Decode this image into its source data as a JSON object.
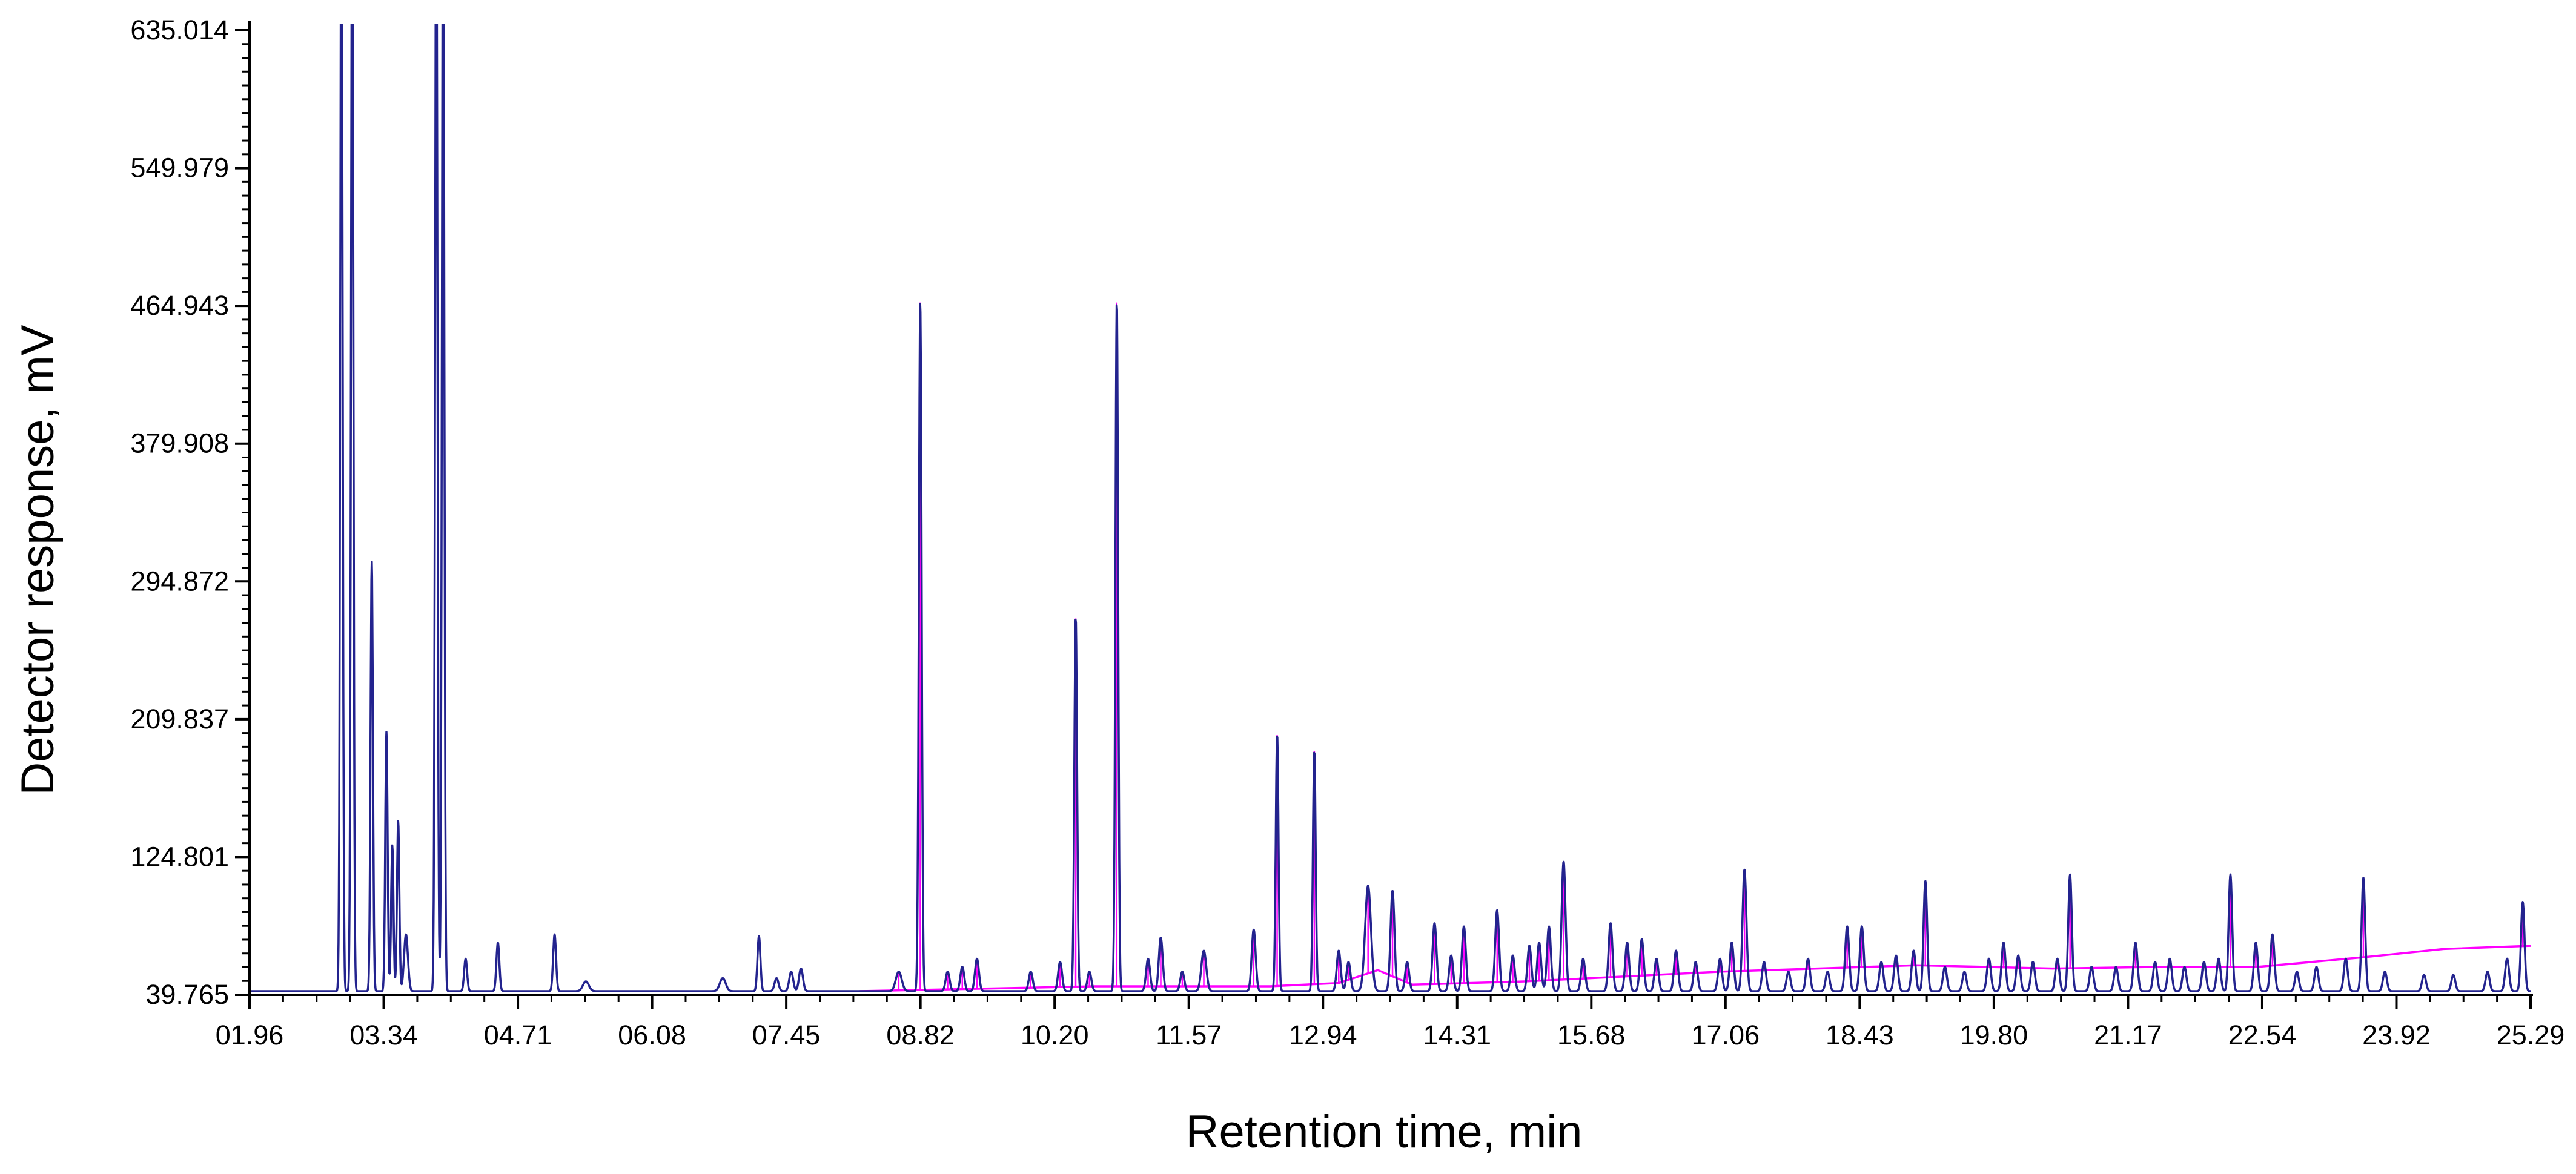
{
  "chart_data": {
    "type": "line",
    "xlabel": "Retention time, min",
    "ylabel": "Detector response, mV",
    "xlim": [
      1.96,
      25.29
    ],
    "ylim": [
      39.765,
      635.014
    ],
    "x_tick_labels": [
      "01.96",
      "03.34",
      "04.71",
      "06.08",
      "07.45",
      "08.82",
      "10.20",
      "11.57",
      "12.94",
      "14.31",
      "15.68",
      "17.06",
      "18.43",
      "19.80",
      "21.17",
      "22.54",
      "23.92",
      "25.29"
    ],
    "y_tick_labels": [
      "635.014",
      "549.979",
      "464.943",
      "379.908",
      "294.872",
      "209.837",
      "124.801",
      "39.765"
    ],
    "grid": false,
    "series": [
      {
        "role": "chromatogram",
        "color": "#23238e",
        "baseline": 42,
        "peaks": [
          [
            2.9,
            700,
            0.012
          ],
          [
            3.01,
            700,
            0.012
          ],
          [
            3.21,
            265,
            0.012
          ],
          [
            3.36,
            160,
            0.012
          ],
          [
            3.42,
            90,
            0.012
          ],
          [
            3.48,
            105,
            0.012
          ],
          [
            3.56,
            35,
            0.02
          ],
          [
            3.87,
            700,
            0.012
          ],
          [
            3.94,
            700,
            0.012
          ],
          [
            4.17,
            20,
            0.015
          ],
          [
            4.5,
            30,
            0.015
          ],
          [
            5.08,
            35,
            0.015
          ],
          [
            5.4,
            6,
            0.03
          ],
          [
            6.8,
            8,
            0.03
          ],
          [
            7.17,
            34,
            0.015
          ],
          [
            7.35,
            8,
            0.02
          ],
          [
            7.5,
            12,
            0.02
          ],
          [
            7.6,
            14,
            0.02
          ],
          [
            8.6,
            12,
            0.03
          ],
          [
            8.82,
            425,
            0.014
          ],
          [
            9.1,
            12,
            0.02
          ],
          [
            9.25,
            15,
            0.02
          ],
          [
            9.4,
            20,
            0.02
          ],
          [
            9.95,
            12,
            0.02
          ],
          [
            10.25,
            18,
            0.02
          ],
          [
            10.41,
            230,
            0.014
          ],
          [
            10.55,
            12,
            0.02
          ],
          [
            10.83,
            425,
            0.014
          ],
          [
            11.15,
            20,
            0.02
          ],
          [
            11.28,
            33,
            0.02
          ],
          [
            11.5,
            12,
            0.02
          ],
          [
            11.72,
            25,
            0.025
          ],
          [
            12.23,
            38,
            0.02
          ],
          [
            12.47,
            158,
            0.014
          ],
          [
            12.85,
            148,
            0.014
          ],
          [
            13.1,
            25,
            0.02
          ],
          [
            13.2,
            18,
            0.02
          ],
          [
            13.4,
            65,
            0.03
          ],
          [
            13.65,
            62,
            0.02
          ],
          [
            13.8,
            18,
            0.02
          ],
          [
            14.08,
            42,
            0.02
          ],
          [
            14.25,
            22,
            0.02
          ],
          [
            14.38,
            40,
            0.02
          ],
          [
            14.72,
            50,
            0.02
          ],
          [
            14.88,
            22,
            0.02
          ],
          [
            15.05,
            28,
            0.02
          ],
          [
            15.15,
            30,
            0.02
          ],
          [
            15.25,
            40,
            0.02
          ],
          [
            15.4,
            80,
            0.02
          ],
          [
            15.6,
            20,
            0.02
          ],
          [
            15.88,
            42,
            0.02
          ],
          [
            16.05,
            30,
            0.02
          ],
          [
            16.2,
            32,
            0.02
          ],
          [
            16.35,
            20,
            0.02
          ],
          [
            16.55,
            25,
            0.02
          ],
          [
            16.75,
            18,
            0.02
          ],
          [
            17.0,
            20,
            0.02
          ],
          [
            17.12,
            30,
            0.02
          ],
          [
            17.25,
            75,
            0.02
          ],
          [
            17.45,
            18,
            0.02
          ],
          [
            17.7,
            12,
            0.02
          ],
          [
            17.9,
            20,
            0.02
          ],
          [
            18.1,
            12,
            0.02
          ],
          [
            18.3,
            40,
            0.02
          ],
          [
            18.45,
            40,
            0.02
          ],
          [
            18.65,
            18,
            0.02
          ],
          [
            18.8,
            22,
            0.02
          ],
          [
            18.98,
            25,
            0.02
          ],
          [
            19.1,
            68,
            0.018
          ],
          [
            19.3,
            15,
            0.02
          ],
          [
            19.5,
            12,
            0.02
          ],
          [
            19.75,
            20,
            0.02
          ],
          [
            19.9,
            30,
            0.02
          ],
          [
            20.05,
            22,
            0.02
          ],
          [
            20.2,
            18,
            0.02
          ],
          [
            20.45,
            20,
            0.02
          ],
          [
            20.58,
            72,
            0.018
          ],
          [
            20.8,
            15,
            0.02
          ],
          [
            21.05,
            15,
            0.02
          ],
          [
            21.25,
            30,
            0.02
          ],
          [
            21.45,
            18,
            0.02
          ],
          [
            21.6,
            20,
            0.02
          ],
          [
            21.75,
            15,
            0.02
          ],
          [
            21.95,
            18,
            0.02
          ],
          [
            22.1,
            20,
            0.02
          ],
          [
            22.22,
            72,
            0.018
          ],
          [
            22.48,
            30,
            0.02
          ],
          [
            22.65,
            35,
            0.02
          ],
          [
            22.9,
            12,
            0.02
          ],
          [
            23.1,
            15,
            0.02
          ],
          [
            23.4,
            20,
            0.02
          ],
          [
            23.58,
            70,
            0.018
          ],
          [
            23.8,
            12,
            0.02
          ],
          [
            24.2,
            10,
            0.02
          ],
          [
            24.5,
            10,
            0.02
          ],
          [
            24.85,
            12,
            0.02
          ],
          [
            25.05,
            20,
            0.02
          ],
          [
            25.21,
            55,
            0.018
          ]
        ]
      },
      {
        "role": "baseline",
        "color": "#ff00ff",
        "points": [
          [
            8.2,
            42
          ],
          [
            10.6,
            45
          ],
          [
            12.4,
            45
          ],
          [
            13.1,
            47
          ],
          [
            13.5,
            55
          ],
          [
            13.85,
            46
          ],
          [
            15.0,
            48
          ],
          [
            17.0,
            54
          ],
          [
            19.0,
            58
          ],
          [
            20.4,
            56
          ],
          [
            21.5,
            57
          ],
          [
            22.5,
            57
          ],
          [
            23.6,
            63
          ],
          [
            24.4,
            68
          ],
          [
            25.29,
            70
          ]
        ]
      }
    ]
  }
}
